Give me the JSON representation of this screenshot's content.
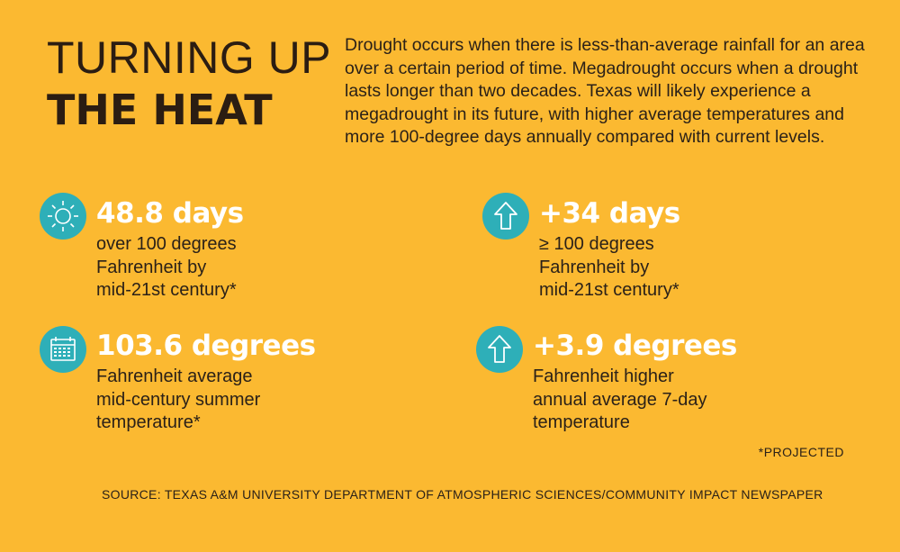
{
  "title": {
    "line1": "TURNING UP",
    "line2": "THE HEAT"
  },
  "intro": "Drought occurs when there is less-than-average rainfall for an area over a certain period of time. Megadrought occurs when a drought lasts longer than two decades. Texas will likely experience a megadrought in its future, with higher average temperatures and more 100-degree days annually compared with current levels.",
  "colors": {
    "background": "#fbb931",
    "icon_circle": "#2eafb8",
    "headline": "#ffffff",
    "text": "#2b2118"
  },
  "stats": [
    {
      "icon": "sun-icon",
      "headline": "48.8 days",
      "description": "over 100 degrees\nFahrenheit by\nmid-21st century*"
    },
    {
      "icon": "arrow-up-icon",
      "headline": "+34 days",
      "description": "≥ 100 degrees\nFahrenheit by\nmid-21st century*"
    },
    {
      "icon": "calendar-icon",
      "headline": "103.6 degrees",
      "description": "Fahrenheit average\nmid-century summer\ntemperature*"
    },
    {
      "icon": "arrow-up-icon",
      "headline": "+3.9 degrees",
      "description": "Fahrenheit higher\nannual average 7-day\ntemperature"
    }
  ],
  "footnote": "*PROJECTED",
  "source": "SOURCE: TEXAS A&M UNIVERSITY DEPARTMENT OF ATMOSPHERIC SCIENCES/COMMUNITY IMPACT NEWSPAPER"
}
